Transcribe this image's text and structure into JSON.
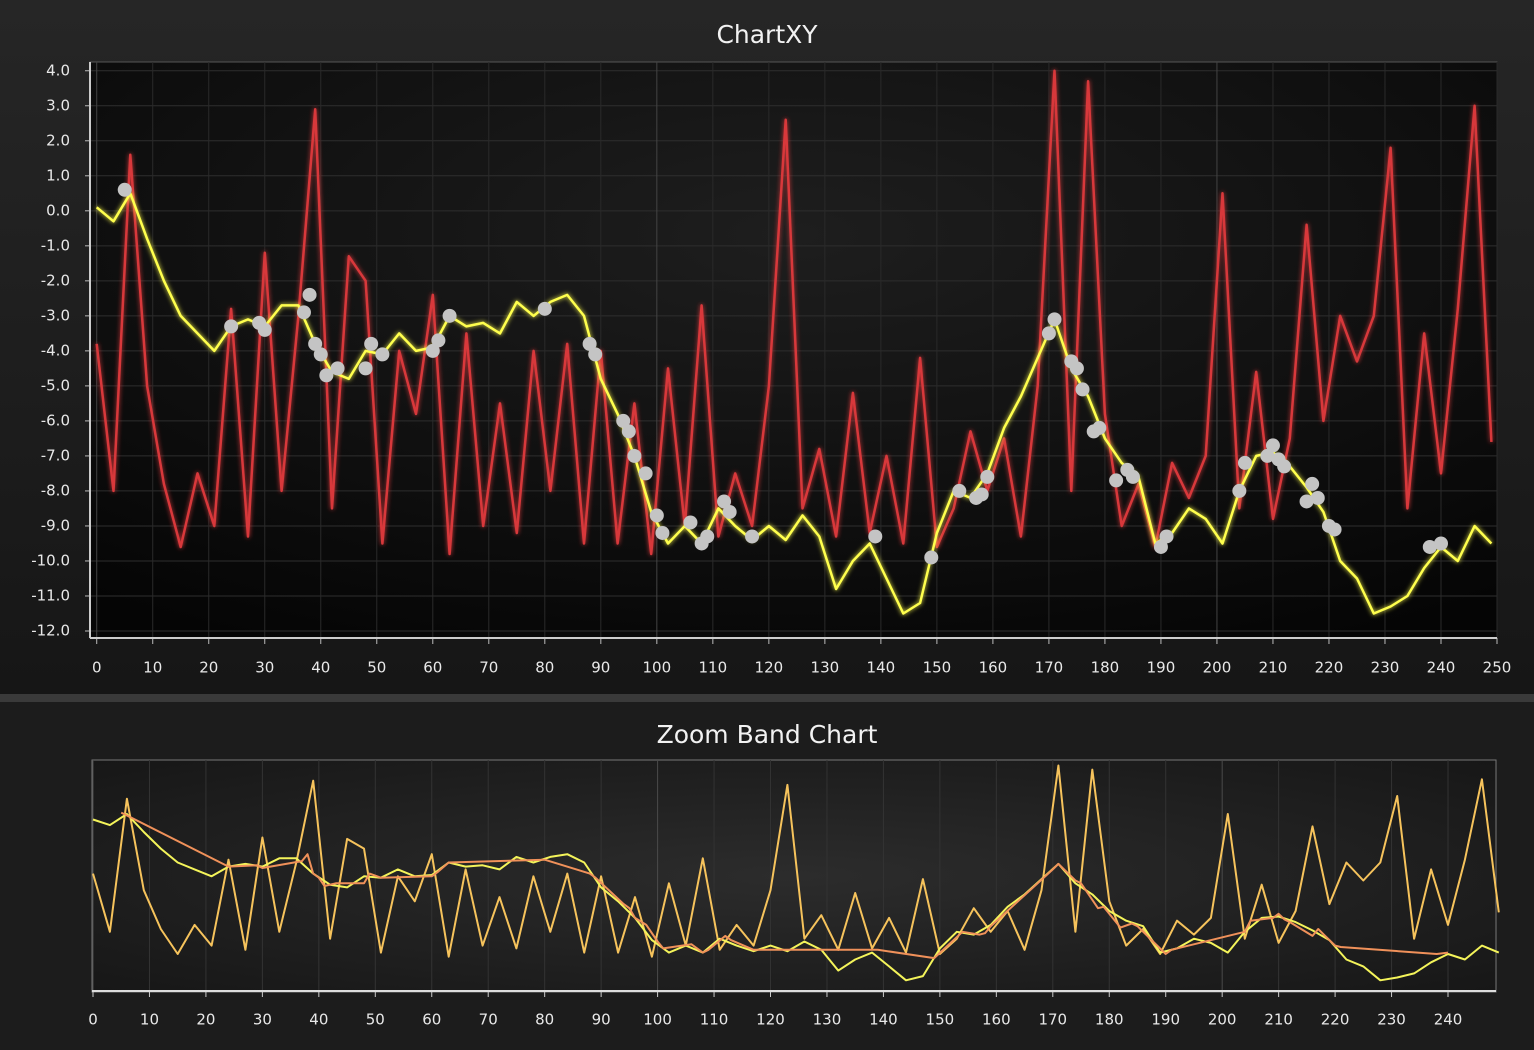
{
  "chart_data": [
    {
      "type": "line",
      "title": "ChartXY",
      "x": [
        0,
        3,
        6,
        9,
        12,
        15,
        18,
        21,
        24,
        27,
        30,
        33,
        36,
        39,
        42,
        45,
        48,
        51,
        54,
        57,
        60,
        63,
        66,
        69,
        72,
        75,
        78,
        81,
        84,
        87,
        90,
        93,
        96,
        99,
        102,
        105,
        108,
        111,
        114,
        117,
        120,
        123,
        126,
        129,
        132,
        135,
        138,
        141,
        144,
        147,
        150,
        153,
        156,
        159,
        162,
        165,
        168,
        171,
        174,
        177,
        180,
        183,
        186,
        189,
        192,
        195,
        198,
        201,
        204,
        207,
        210,
        213,
        216,
        219,
        222,
        225,
        228,
        231,
        234,
        237,
        240,
        243,
        246,
        249
      ],
      "series": [
        {
          "type": "line",
          "color": "#d8383a",
          "values": [
            -3.8,
            -8.0,
            1.6,
            -5.0,
            -7.8,
            -9.6,
            -7.5,
            -9.0,
            -2.8,
            -9.3,
            -1.2,
            -8.0,
            -3.0,
            2.9,
            -8.5,
            -1.3,
            -2.0,
            -9.5,
            -4.0,
            -5.8,
            -2.4,
            -9.8,
            -3.5,
            -9.0,
            -5.5,
            -9.2,
            -4.0,
            -8.0,
            -3.8,
            -9.5,
            -4.0,
            -9.5,
            -5.5,
            -9.8,
            -4.5,
            -9.0,
            -2.7,
            -9.3,
            -7.5,
            -9.0,
            -5.0,
            2.6,
            -8.5,
            -6.8,
            -9.3,
            -5.2,
            -9.2,
            -7.0,
            -9.5,
            -4.2,
            -9.6,
            -8.5,
            -6.3,
            -8.0,
            -6.5,
            -9.3,
            -5.0,
            4.0,
            -8.0,
            3.7,
            -5.8,
            -9.0,
            -7.8,
            -9.6,
            -7.2,
            -8.2,
            -7.0,
            0.5,
            -8.5,
            -4.6,
            -8.8,
            -6.5,
            -0.4,
            -6.0,
            -3.0,
            -4.3,
            -3.0,
            1.8,
            -8.5,
            -3.5,
            -7.5,
            -2.8,
            3.0,
            -6.6
          ]
        },
        {
          "type": "line",
          "color": "#ffff4d",
          "values": [
            0.1,
            -0.3,
            0.5,
            -0.8,
            -2.0,
            -3.0,
            -3.5,
            -4.0,
            -3.3,
            -3.1,
            -3.3,
            -2.7,
            -2.7,
            -3.8,
            -4.6,
            -4.8,
            -4.0,
            -4.1,
            -3.5,
            -4.0,
            -3.9,
            -3.0,
            -3.3,
            -3.2,
            -3.5,
            -2.6,
            -3.0,
            -2.6,
            -2.4,
            -3.0,
            -4.8,
            -5.8,
            -7.0,
            -8.6,
            -9.5,
            -9.0,
            -9.5,
            -8.5,
            -9.0,
            -9.4,
            -9.0,
            -9.4,
            -8.7,
            -9.3,
            -10.8,
            -10.0,
            -9.5,
            -10.5,
            -11.5,
            -11.2,
            -9.2,
            -8.0,
            -8.2,
            -7.5,
            -6.2,
            -5.3,
            -4.2,
            -3.1,
            -4.5,
            -5.3,
            -6.5,
            -7.2,
            -7.6,
            -9.5,
            -9.2,
            -8.5,
            -8.8,
            -9.5,
            -8.0,
            -7.0,
            -6.9,
            -7.3,
            -7.9,
            -8.6,
            -10.0,
            -10.5,
            -11.5,
            -11.3,
            -11.0,
            -10.2,
            -9.6,
            -10.0,
            -9.0,
            -9.5
          ]
        },
        {
          "type": "scatter",
          "color": "#c4c4c4",
          "x": [
            5,
            24,
            29,
            30,
            37,
            38,
            39,
            40,
            41,
            43,
            48,
            49,
            51,
            60,
            61,
            63,
            80,
            88,
            89,
            94,
            95,
            96,
            98,
            100,
            101,
            106,
            108,
            109,
            112,
            113,
            117,
            139,
            149,
            154,
            157,
            158,
            159,
            170,
            171,
            174,
            175,
            176,
            178,
            179,
            182,
            184,
            185,
            190,
            191,
            204,
            205,
            209,
            210,
            211,
            212,
            216,
            217,
            218,
            220,
            221,
            238,
            240
          ],
          "values": [
            0.6,
            -3.3,
            -3.2,
            -3.4,
            -2.9,
            -2.4,
            -3.8,
            -4.1,
            -4.7,
            -4.5,
            -4.5,
            -3.8,
            -4.1,
            -4.0,
            -3.7,
            -3.0,
            -2.8,
            -3.8,
            -4.1,
            -6.0,
            -6.3,
            -7.0,
            -7.5,
            -8.7,
            -9.2,
            -8.9,
            -9.5,
            -9.3,
            -8.3,
            -8.6,
            -9.3,
            -9.3,
            -9.9,
            -8.0,
            -8.2,
            -8.1,
            -7.6,
            -3.5,
            -3.1,
            -4.3,
            -4.5,
            -5.1,
            -6.3,
            -6.2,
            -7.7,
            -7.4,
            -7.6,
            -9.6,
            -9.3,
            -8.0,
            -7.2,
            -7.0,
            -6.7,
            -7.1,
            -7.3,
            -8.3,
            -7.8,
            -8.2,
            -9.0,
            -9.1,
            -9.6,
            -9.5
          ]
        }
      ],
      "xlim": [
        -1.2,
        250
      ],
      "ylim": [
        -12.2,
        4.25
      ],
      "xticks": [
        0,
        10,
        20,
        30,
        40,
        50,
        60,
        70,
        80,
        90,
        100,
        110,
        120,
        130,
        140,
        150,
        160,
        170,
        180,
        190,
        200,
        210,
        220,
        230,
        240,
        250
      ],
      "yticks": [
        {
          "value": 4,
          "label": "4.0"
        },
        {
          "value": 3,
          "label": "3.0"
        },
        {
          "value": 2,
          "label": "2.0"
        },
        {
          "value": 1,
          "label": "1.0"
        },
        {
          "value": 0,
          "label": "0.0"
        },
        {
          "value": -1,
          "label": "-1.0"
        },
        {
          "value": -2,
          "label": "-2.0"
        },
        {
          "value": -3,
          "label": "-3.0"
        },
        {
          "value": -4,
          "label": "-4.0"
        },
        {
          "value": -5,
          "label": "-5.0"
        },
        {
          "value": -6,
          "label": "-6.0"
        },
        {
          "value": -7,
          "label": "-7.0"
        },
        {
          "value": -8,
          "label": "-8.0"
        },
        {
          "value": -9,
          "label": "-9.0"
        },
        {
          "value": -10,
          "label": "-10.0"
        },
        {
          "value": -11,
          "label": "-11.0"
        },
        {
          "value": -12,
          "label": "-12.0"
        }
      ],
      "grid": true
    },
    {
      "type": "zoom-band",
      "title": "Zoom Band Chart",
      "colors": [
        "#f6c35c",
        "#f4f45a",
        "#f0915a"
      ],
      "xlim": [
        0,
        248.5
      ],
      "xticks": [
        0,
        10,
        20,
        30,
        40,
        50,
        60,
        70,
        80,
        90,
        100,
        110,
        120,
        130,
        140,
        150,
        160,
        170,
        180,
        190,
        200,
        210,
        220,
        230,
        240
      ],
      "grid": true
    }
  ]
}
